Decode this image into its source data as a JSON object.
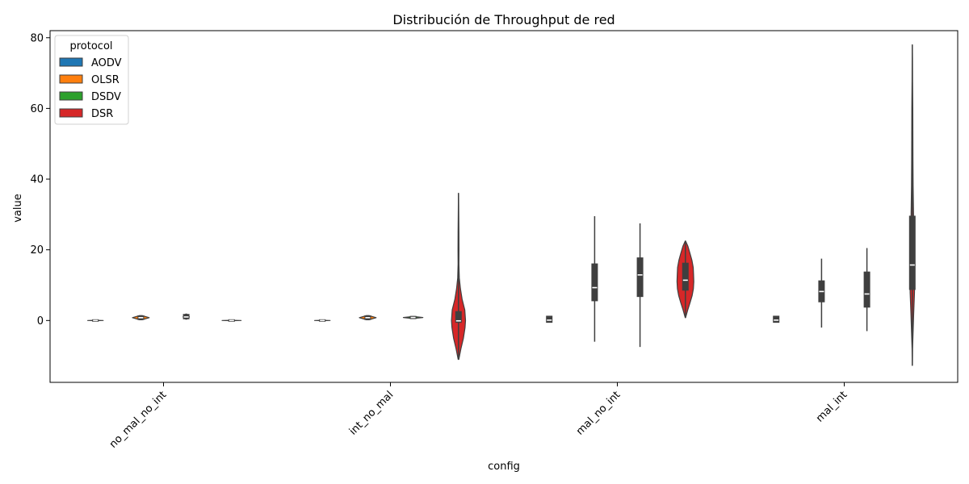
{
  "chart_data": {
    "type": "violin",
    "title": "Distribución de Throughput de red",
    "xlabel": "config",
    "ylabel": "value",
    "categories": [
      "no_mal_no_int",
      "int_no_mal",
      "mal_no_int",
      "mal_int"
    ],
    "ylim": [
      -17.5,
      82
    ],
    "yticks": [
      0,
      20,
      40,
      60,
      80
    ],
    "grid": false,
    "legend": {
      "title": "protocol",
      "placement": "top-left",
      "entries": [
        "AODV",
        "OLSR",
        "DSDV",
        "DSR"
      ]
    },
    "series": [
      {
        "name": "AODV",
        "color": "#1f77b4",
        "violins": [
          {
            "category": "no_mal_no_int",
            "min": -0.05,
            "max": 0.05,
            "q1": 0.0,
            "median": 0.0,
            "q3": 0.0,
            "maxwidth": 0.34,
            "profile": [
              [
                -0.05,
                0.15
              ],
              [
                0,
                1
              ],
              [
                0.05,
                0.15
              ]
            ]
          },
          {
            "category": "int_no_mal",
            "min": -0.05,
            "max": 0.05,
            "q1": 0.0,
            "median": 0.0,
            "q3": 0.0,
            "maxwidth": 0.34,
            "profile": [
              [
                -0.05,
                0.15
              ],
              [
                0,
                1
              ],
              [
                0.05,
                0.15
              ]
            ]
          },
          {
            "category": "mal_no_int",
            "min": -0.5,
            "max": 1.2,
            "q1": -0.3,
            "median": 0.1,
            "q3": 1.0,
            "maxwidth": 0.02,
            "profile": [
              [
                -0.5,
                0.3
              ],
              [
                0.3,
                1
              ],
              [
                1.2,
                0.3
              ]
            ]
          },
          {
            "category": "mal_int",
            "min": -0.5,
            "max": 1.2,
            "q1": -0.3,
            "median": 0.1,
            "q3": 1.0,
            "maxwidth": 0.02,
            "profile": [
              [
                -0.5,
                0.3
              ],
              [
                0.3,
                1
              ],
              [
                1.2,
                0.3
              ]
            ]
          }
        ]
      },
      {
        "name": "OLSR",
        "color": "#ff7f0e",
        "violins": [
          {
            "category": "no_mal_no_int",
            "min": 0.2,
            "max": 1.4,
            "q1": 0.5,
            "median": 0.8,
            "q3": 1.1,
            "maxwidth": 0.37,
            "profile": [
              [
                0.2,
                0.15
              ],
              [
                0.8,
                1
              ],
              [
                1.4,
                0.15
              ]
            ]
          },
          {
            "category": "int_no_mal",
            "min": 0.2,
            "max": 1.4,
            "q1": 0.5,
            "median": 0.8,
            "q3": 1.1,
            "maxwidth": 0.37,
            "profile": [
              [
                0.2,
                0.15
              ],
              [
                0.8,
                1
              ],
              [
                1.4,
                0.15
              ]
            ]
          },
          {
            "category": "mal_no_int",
            "min": -6,
            "max": 29.5,
            "q1": 5.8,
            "median": 9.3,
            "q3": 15.8,
            "maxwidth": 0.02,
            "profile": [
              [
                -6,
                0.1
              ],
              [
                -1,
                0.3
              ],
              [
                5,
                0.7
              ],
              [
                10,
                1
              ],
              [
                15,
                0.8
              ],
              [
                20,
                0.5
              ],
              [
                25,
                0.25
              ],
              [
                29.5,
                0.1
              ]
            ]
          },
          {
            "category": "mal_int",
            "min": -2,
            "max": 17.5,
            "q1": 5.5,
            "median": 8.2,
            "q3": 11.0,
            "maxwidth": 0.02,
            "profile": [
              [
                -2,
                0.1
              ],
              [
                2,
                0.4
              ],
              [
                6,
                0.8
              ],
              [
                9,
                1
              ],
              [
                12,
                0.7
              ],
              [
                15,
                0.3
              ],
              [
                17.5,
                0.1
              ]
            ]
          }
        ]
      },
      {
        "name": "DSDV",
        "color": "#2ca02c",
        "violins": [
          {
            "category": "no_mal_no_int",
            "min": 0.4,
            "max": 1.8,
            "q1": 0.7,
            "median": 1.0,
            "q3": 1.5,
            "maxwidth": 0.14,
            "profile": [
              [
                0.4,
                0.2
              ],
              [
                1.0,
                1
              ],
              [
                1.8,
                0.2
              ]
            ]
          },
          {
            "category": "int_no_mal",
            "min": 0.6,
            "max": 1.1,
            "q1": 0.75,
            "median": 0.85,
            "q3": 0.95,
            "maxwidth": 0.43,
            "profile": [
              [
                0.6,
                0.15
              ],
              [
                0.85,
                1
              ],
              [
                1.1,
                0.15
              ]
            ]
          },
          {
            "category": "mal_no_int",
            "min": -7.5,
            "max": 27.5,
            "q1": 7.0,
            "median": 12.9,
            "q3": 17.5,
            "maxwidth": 0.02,
            "profile": [
              [
                -7.5,
                0.1
              ],
              [
                0,
                0.3
              ],
              [
                6,
                0.6
              ],
              [
                12,
                1
              ],
              [
                17,
                0.8
              ],
              [
                22,
                0.4
              ],
              [
                27.5,
                0.1
              ]
            ]
          },
          {
            "category": "mal_int",
            "min": -3,
            "max": 20.5,
            "q1": 4.0,
            "median": 7.5,
            "q3": 13.5,
            "maxwidth": 0.02,
            "profile": [
              [
                -3,
                0.1
              ],
              [
                2,
                0.5
              ],
              [
                7,
                1
              ],
              [
                12,
                0.8
              ],
              [
                16,
                0.4
              ],
              [
                20.5,
                0.1
              ]
            ]
          }
        ]
      },
      {
        "name": "DSR",
        "color": "#d62728",
        "violins": [
          {
            "category": "no_mal_no_int",
            "min": -0.05,
            "max": 0.05,
            "q1": 0.0,
            "median": 0.0,
            "q3": 0.0,
            "maxwidth": 0.42,
            "profile": [
              [
                -0.05,
                0.15
              ],
              [
                0,
                1
              ],
              [
                0.05,
                0.15
              ]
            ]
          },
          {
            "category": "int_no_mal",
            "min": -11,
            "max": 36,
            "q1": -0.3,
            "median": -0.1,
            "q3": 2.3,
            "maxwidth": 0.31,
            "profile": [
              [
                -11,
                0.05
              ],
              [
                -8,
                0.35
              ],
              [
                -5,
                0.7
              ],
              [
                -2,
                0.93
              ],
              [
                0,
                1
              ],
              [
                3,
                0.9
              ],
              [
                6,
                0.52
              ],
              [
                9,
                0.27
              ],
              [
                12,
                0.12
              ],
              [
                16,
                0.06
              ],
              [
                20,
                0.07
              ],
              [
                25,
                0.06
              ],
              [
                30,
                0.04
              ],
              [
                36,
                0.01
              ]
            ]
          },
          {
            "category": "mal_no_int",
            "min": 0.8,
            "max": 22.5,
            "q1": 8.8,
            "median": 11.4,
            "q3": 16.0,
            "maxwidth": 0.37,
            "profile": [
              [
                0.8,
                0.02
              ],
              [
                3,
                0.28
              ],
              [
                5,
                0.55
              ],
              [
                7,
                0.8
              ],
              [
                9,
                0.95
              ],
              [
                11,
                1
              ],
              [
                13,
                0.97
              ],
              [
                15,
                0.93
              ],
              [
                17,
                0.78
              ],
              [
                19,
                0.55
              ],
              [
                21,
                0.3
              ],
              [
                22.5,
                0.02
              ]
            ]
          },
          {
            "category": "mal_int",
            "min": -12.7,
            "max": 78,
            "q1": 9.0,
            "median": 15.7,
            "q3": 29.3,
            "maxwidth": 0.1,
            "profile": [
              [
                -12.7,
                0.02
              ],
              [
                -8,
                0.12
              ],
              [
                -3,
                0.35
              ],
              [
                2,
                0.62
              ],
              [
                8,
                0.95
              ],
              [
                12,
                1
              ],
              [
                17,
                0.97
              ],
              [
                23,
                0.82
              ],
              [
                30,
                0.55
              ],
              [
                38,
                0.35
              ],
              [
                45,
                0.3
              ],
              [
                52,
                0.26
              ],
              [
                60,
                0.2
              ],
              [
                68,
                0.12
              ],
              [
                74,
                0.06
              ],
              [
                78,
                0.01
              ]
            ]
          }
        ]
      }
    ]
  }
}
